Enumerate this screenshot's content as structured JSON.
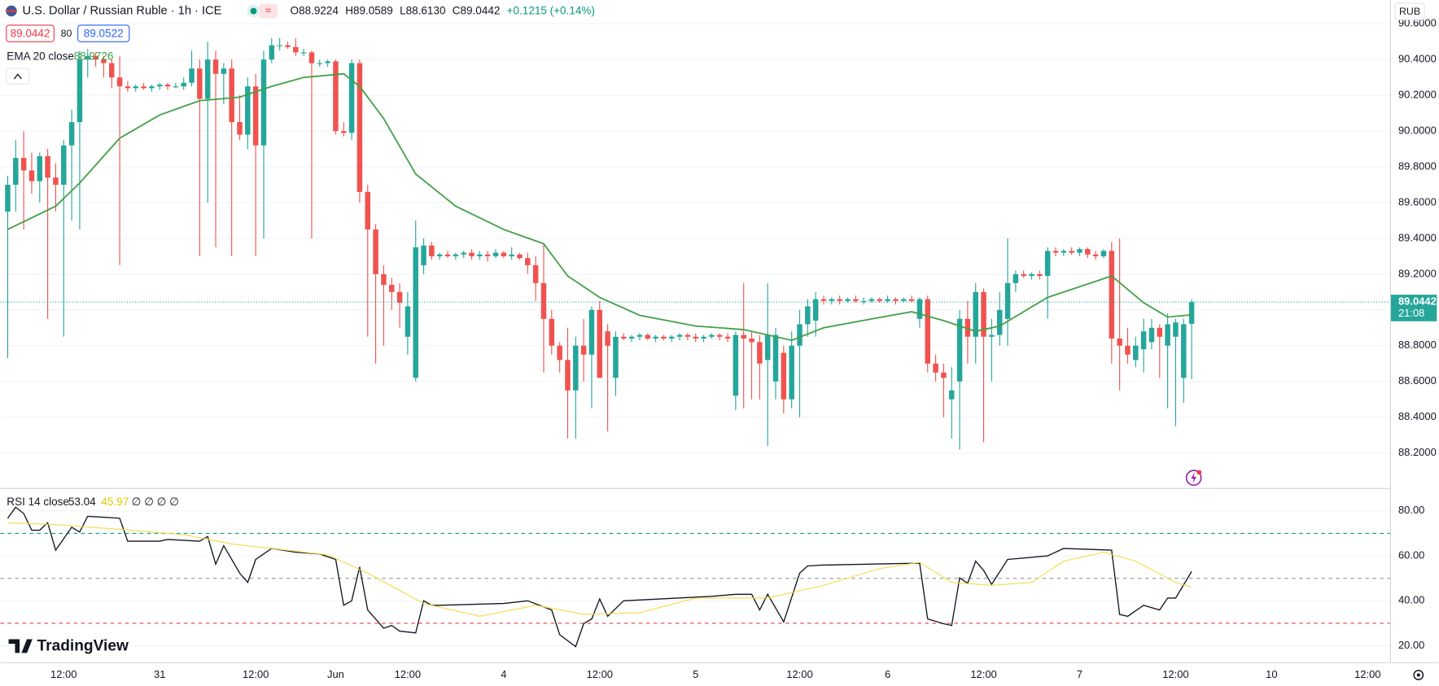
{
  "header": {
    "symbol": "U.S. Dollar / Russian Ruble · 1h · ICE",
    "ohlc": [
      "O88.9224",
      "H89.0589",
      "L88.6130",
      "C89.0442"
    ],
    "change": "+0.1215 (+0.14%)",
    "sell": "89.0442",
    "spread": "80",
    "buy": "89.0522",
    "currency": "RUB",
    "countdown": "21:08",
    "brand": "TradingView"
  },
  "chart_data": [
    {
      "type": "candlestick",
      "up_color": "#26a69a",
      "down_color": "#ef5350",
      "open": [
        89.55,
        89.7,
        89.85,
        89.78,
        89.72,
        89.86,
        89.74,
        89.7,
        89.92,
        90.05,
        90.4,
        90.42,
        90.4,
        90.38,
        90.3,
        90.25,
        90.24,
        90.25,
        90.24,
        90.25,
        90.26,
        90.25,
        90.25,
        90.27,
        90.35,
        90.18,
        90.4,
        90.32,
        90.35,
        90.05,
        89.98,
        90.25,
        89.92,
        90.4,
        90.48,
        90.48,
        90.47,
        90.44,
        90.44,
        90.38,
        90.38,
        90.39,
        90.0,
        89.99,
        90.38,
        89.66,
        89.45,
        89.2,
        89.14,
        89.1,
        88.85,
        88.62,
        89.25,
        89.36,
        89.3,
        89.31,
        89.3,
        89.31,
        89.32,
        89.3,
        89.31,
        89.3,
        89.32,
        89.3,
        89.31,
        89.29,
        89.25,
        89.15,
        88.95,
        88.8,
        88.72,
        88.55,
        88.8,
        88.75,
        89.0,
        88.88,
        88.62,
        88.85,
        88.84,
        88.85,
        88.86,
        88.84,
        88.85,
        88.84,
        88.85,
        88.86,
        88.85,
        88.84,
        88.85,
        88.86,
        88.85,
        88.52,
        88.86,
        88.84,
        88.82,
        88.72,
        88.6,
        88.76,
        88.5,
        88.8,
        88.92,
        88.94,
        89.06,
        89.05,
        89.06,
        89.05,
        89.06,
        89.05,
        89.05,
        89.06,
        89.05,
        89.06,
        89.05,
        89.06,
        88.95,
        89.06,
        88.7,
        88.65,
        88.5,
        88.6,
        88.95,
        88.85,
        89.1,
        88.85,
        88.86,
        88.95,
        89.15,
        89.2,
        89.19,
        89.2,
        89.19,
        89.33,
        89.32,
        89.33,
        89.32,
        89.34,
        89.31,
        89.3,
        89.33,
        88.84,
        88.8,
        88.72,
        88.78,
        88.82,
        88.9,
        88.8,
        88.85,
        88.62,
        88.9224
      ],
      "high": [
        89.75,
        89.95,
        90.0,
        89.88,
        89.88,
        89.9,
        89.82,
        89.95,
        90.12,
        90.45,
        90.46,
        90.44,
        90.42,
        90.4,
        90.42,
        90.28,
        90.26,
        90.27,
        90.26,
        90.27,
        90.27,
        90.27,
        90.3,
        90.45,
        90.4,
        90.5,
        90.45,
        90.38,
        90.4,
        90.2,
        90.3,
        90.32,
        90.45,
        90.52,
        90.52,
        90.5,
        90.52,
        90.46,
        90.45,
        90.4,
        90.4,
        90.4,
        90.05,
        90.4,
        90.4,
        89.7,
        89.48,
        89.25,
        89.18,
        89.15,
        89.1,
        89.5,
        89.4,
        89.38,
        89.32,
        89.33,
        89.32,
        89.33,
        89.34,
        89.33,
        89.33,
        89.34,
        89.33,
        89.35,
        89.32,
        89.32,
        89.3,
        89.37,
        89.0,
        88.82,
        88.9,
        88.85,
        88.95,
        89.02,
        89.05,
        88.92,
        88.88,
        88.87,
        88.86,
        88.87,
        88.87,
        88.86,
        88.86,
        88.86,
        88.87,
        88.87,
        88.87,
        88.86,
        88.87,
        88.87,
        88.87,
        88.88,
        89.15,
        88.88,
        88.86,
        89.15,
        88.9,
        88.8,
        88.88,
        89.0,
        89.06,
        89.1,
        89.08,
        89.07,
        89.08,
        89.07,
        89.08,
        89.07,
        89.07,
        89.07,
        89.08,
        89.07,
        89.07,
        89.08,
        89.07,
        89.08,
        88.75,
        88.7,
        88.68,
        89.0,
        89.05,
        89.15,
        89.12,
        88.95,
        89.1,
        89.4,
        89.22,
        89.22,
        89.21,
        89.22,
        89.35,
        89.35,
        89.34,
        89.35,
        89.35,
        89.35,
        89.33,
        89.34,
        89.38,
        89.4,
        88.9,
        88.85,
        88.95,
        88.95,
        88.92,
        88.98,
        88.95,
        88.95,
        89.0589
      ],
      "low": [
        88.73,
        89.55,
        89.45,
        89.65,
        89.6,
        88.95,
        89.55,
        88.85,
        89.5,
        89.45,
        90.3,
        90.36,
        90.3,
        90.24,
        89.25,
        90.22,
        90.22,
        90.23,
        90.22,
        90.23,
        90.23,
        90.24,
        90.23,
        90.25,
        89.3,
        89.6,
        89.35,
        90.15,
        89.3,
        89.95,
        89.9,
        89.3,
        89.4,
        90.38,
        90.45,
        90.46,
        90.42,
        90.42,
        89.4,
        90.36,
        90.36,
        89.98,
        89.97,
        89.95,
        89.6,
        88.85,
        88.7,
        88.8,
        89.0,
        88.9,
        88.75,
        88.6,
        89.2,
        89.28,
        89.28,
        89.29,
        89.28,
        89.29,
        89.28,
        89.28,
        89.27,
        89.29,
        89.29,
        89.28,
        89.28,
        89.2,
        89.05,
        88.65,
        88.75,
        88.65,
        88.28,
        88.28,
        88.6,
        88.45,
        88.62,
        88.32,
        88.52,
        88.83,
        88.82,
        88.83,
        88.83,
        88.82,
        88.83,
        88.82,
        88.83,
        88.83,
        88.82,
        88.82,
        88.84,
        88.83,
        88.82,
        88.44,
        88.45,
        88.5,
        88.5,
        88.24,
        88.5,
        88.42,
        88.45,
        88.4,
        88.85,
        88.85,
        89.03,
        89.03,
        89.03,
        89.04,
        89.04,
        89.03,
        89.04,
        89.04,
        89.04,
        89.03,
        89.04,
        89.04,
        88.9,
        88.65,
        88.6,
        88.4,
        88.28,
        88.22,
        88.7,
        88.7,
        88.26,
        88.6,
        88.8,
        88.8,
        89.1,
        89.18,
        89.17,
        89.17,
        88.95,
        89.3,
        89.3,
        89.31,
        89.3,
        89.29,
        89.28,
        89.29,
        88.7,
        88.55,
        88.7,
        88.68,
        88.65,
        88.78,
        88.62,
        88.45,
        88.35,
        88.48,
        88.613
      ],
      "close": [
        89.7,
        89.85,
        89.78,
        89.72,
        89.86,
        89.74,
        89.7,
        89.92,
        90.05,
        90.4,
        90.42,
        90.4,
        90.38,
        90.3,
        90.25,
        90.24,
        90.25,
        90.24,
        90.25,
        90.26,
        90.25,
        90.25,
        90.27,
        90.35,
        90.18,
        90.4,
        90.32,
        90.35,
        90.05,
        89.98,
        90.25,
        89.92,
        90.4,
        90.48,
        90.48,
        90.47,
        90.44,
        90.44,
        90.38,
        90.38,
        90.39,
        90.0,
        89.99,
        90.38,
        89.66,
        89.45,
        89.2,
        89.14,
        89.1,
        89.04,
        89.02,
        89.35,
        89.36,
        89.3,
        89.31,
        89.3,
        89.31,
        89.32,
        89.3,
        89.31,
        89.3,
        89.32,
        89.3,
        89.31,
        89.29,
        89.25,
        89.15,
        88.95,
        88.8,
        88.72,
        88.55,
        88.8,
        88.75,
        89.0,
        88.62,
        88.8,
        88.85,
        88.84,
        88.85,
        88.86,
        88.84,
        88.85,
        88.84,
        88.85,
        88.86,
        88.85,
        88.84,
        88.85,
        88.86,
        88.85,
        88.84,
        88.86,
        88.84,
        88.82,
        88.7,
        88.86,
        88.86,
        88.5,
        88.8,
        88.92,
        89.02,
        89.06,
        89.05,
        89.06,
        89.05,
        89.06,
        89.05,
        89.05,
        89.06,
        89.05,
        89.06,
        89.05,
        89.06,
        89.05,
        89.06,
        88.7,
        88.65,
        88.62,
        88.55,
        88.95,
        88.85,
        89.1,
        88.85,
        88.86,
        89.0,
        89.15,
        89.2,
        89.19,
        89.2,
        89.19,
        89.33,
        89.32,
        89.33,
        89.32,
        89.34,
        89.31,
        89.3,
        89.33,
        88.84,
        88.8,
        88.75,
        88.8,
        88.88,
        88.9,
        88.85,
        88.92,
        88.93,
        88.92,
        89.0442
      ],
      "xlim": [
        -0.92,
        172.8
      ],
      "ylim": [
        88.015,
        90.733
      ],
      "xticks": [
        {
          "value": 7,
          "label": "12:00"
        },
        {
          "value": 19,
          "label": "31"
        },
        {
          "value": 31,
          "label": "12:00"
        },
        {
          "value": 41,
          "label": "Jun"
        },
        {
          "value": 50,
          "label": "12:00"
        },
        {
          "value": 62,
          "label": "4"
        },
        {
          "value": 74,
          "label": "12:00"
        },
        {
          "value": 86,
          "label": "5"
        },
        {
          "value": 99,
          "label": "12:00"
        },
        {
          "value": 110,
          "label": "6"
        },
        {
          "value": 122,
          "label": "12:00"
        },
        {
          "value": 134,
          "label": "7"
        },
        {
          "value": 146,
          "label": "12:00"
        },
        {
          "value": 158,
          "label": "10"
        },
        {
          "value": 170,
          "label": "12:00"
        }
      ],
      "yticks": [
        {
          "value": 88.2,
          "label": "88.2000"
        },
        {
          "value": 88.4,
          "label": "88.4000"
        },
        {
          "value": 88.6,
          "label": "88.6000"
        },
        {
          "value": 88.8,
          "label": "88.8000"
        },
        {
          "value": 89.0,
          "label": "89.0000"
        },
        {
          "value": 89.2,
          "label": "89.2000"
        },
        {
          "value": 89.4,
          "label": "89.4000"
        },
        {
          "value": 89.6,
          "label": "89.6000"
        },
        {
          "value": 89.8,
          "label": "89.8000"
        },
        {
          "value": 90.0,
          "label": "90.0000"
        },
        {
          "value": 90.2,
          "label": "90.2000"
        },
        {
          "value": 90.4,
          "label": "90.4000"
        },
        {
          "value": 90.6,
          "label": "90.6000"
        }
      ],
      "grid": true,
      "last_price": {
        "value": 89.0442,
        "label": "89.0442"
      },
      "overlay": {
        "name": "EMA 20 close",
        "value_label": "88.9726",
        "color": "#43a047",
        "x": [
          0,
          6,
          9,
          14,
          19,
          24,
          29,
          33,
          37,
          42,
          44,
          47,
          51,
          56,
          62,
          67,
          70,
          74,
          79,
          86,
          92,
          98,
          102,
          108,
          113,
          117,
          121,
          124,
          130,
          138,
          142,
          145,
          148
        ],
        "values": [
          89.45,
          89.58,
          89.71,
          89.96,
          90.09,
          90.17,
          90.19,
          90.25,
          90.3,
          90.32,
          90.25,
          90.07,
          89.76,
          89.58,
          89.45,
          89.37,
          89.19,
          89.07,
          88.97,
          88.91,
          88.89,
          88.83,
          88.9,
          88.95,
          88.99,
          88.94,
          88.88,
          88.91,
          89.07,
          89.19,
          89.04,
          88.96,
          88.9726
        ]
      }
    },
    {
      "type": "line",
      "title": "RSI 14 close",
      "legend_extra": "∅ ∅ ∅ ∅",
      "ylim": [
        12.7,
        89.8
      ],
      "yticks": [
        {
          "value": 20,
          "label": "20.00"
        },
        {
          "value": 40,
          "label": "40.00"
        },
        {
          "value": 60,
          "label": "60.00"
        },
        {
          "value": 80,
          "label": "80.00"
        }
      ],
      "bands": [
        {
          "value": 70,
          "color": "#089981"
        },
        {
          "value": 50,
          "color": "#9598a1"
        },
        {
          "value": 30,
          "color": "#f23645"
        }
      ],
      "series": [
        {
          "color": "#131722",
          "value_label": "53.04",
          "x": [
            0,
            1,
            2,
            3,
            4,
            5,
            6,
            8,
            9,
            10,
            14,
            15,
            19,
            20,
            24,
            25,
            26,
            27,
            29,
            30,
            31,
            33,
            36,
            39,
            41,
            42,
            43,
            44,
            45,
            47,
            48,
            49,
            51,
            52,
            53,
            54,
            62,
            65,
            68,
            69,
            71,
            72,
            73,
            74,
            75,
            77,
            88,
            91,
            93,
            94,
            95,
            97,
            99,
            100,
            102,
            108,
            114,
            115,
            117,
            118,
            119,
            120,
            121,
            122,
            123,
            125,
            130,
            132,
            138,
            139,
            140,
            142,
            144,
            145,
            146,
            148
          ],
          "values": [
            76.7,
            81.6,
            78.8,
            71.4,
            71.4,
            74.7,
            62.5,
            72.7,
            70.6,
            77.6,
            76.7,
            66.5,
            66.5,
            67.3,
            66.5,
            68.6,
            56.3,
            64.5,
            52.3,
            48.2,
            58.4,
            63.3,
            61.6,
            60.8,
            58.4,
            38.0,
            40.0,
            55.1,
            35.9,
            27.8,
            29.0,
            26.5,
            25.7,
            40.0,
            38.0,
            38.0,
            38.8,
            40.0,
            35.9,
            24.9,
            19.6,
            29.8,
            31.9,
            40.8,
            33.1,
            40.0,
            42.0,
            42.9,
            42.9,
            35.9,
            42.9,
            30.6,
            52.3,
            55.5,
            55.9,
            56.3,
            56.7,
            31.9,
            29.8,
            29.0,
            50.2,
            47.8,
            57.6,
            53.5,
            47.3,
            58.4,
            60.0,
            63.3,
            62.5,
            33.9,
            33.1,
            38.0,
            35.9,
            41.2,
            41.2,
            53.04
          ]
        },
        {
          "color": "#f2dc4a",
          "value_label": "45.97",
          "x": [
            0,
            6,
            14,
            22,
            28,
            33,
            40,
            45,
            52,
            59,
            66,
            72,
            79,
            86,
            95,
            102,
            109,
            114,
            118,
            123,
            128,
            132,
            137,
            141,
            146,
            148
          ],
          "values": [
            74.7,
            73.9,
            71.8,
            69.4,
            65.3,
            63.3,
            60.4,
            52.3,
            38.8,
            33.1,
            38.0,
            33.9,
            34.7,
            41.2,
            41.2,
            46.9,
            54.3,
            57.1,
            48.2,
            46.9,
            48.2,
            57.6,
            61.6,
            57.6,
            48.2,
            45.97
          ]
        }
      ]
    }
  ]
}
